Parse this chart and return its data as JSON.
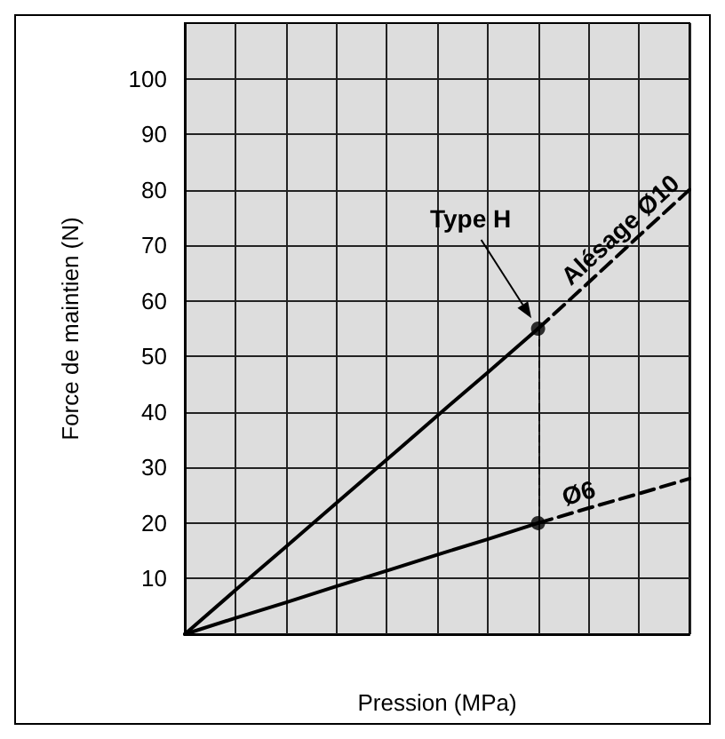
{
  "chart_data": {
    "type": "line",
    "xlabel": "Pression (MPa)",
    "ylabel": "Force de maintien (N)",
    "categories": [
      null,
      null,
      null,
      null,
      null,
      null,
      null,
      null,
      null,
      null,
      null
    ],
    "ylim": [
      0,
      110
    ],
    "yticks": [
      10,
      20,
      30,
      40,
      50,
      60,
      70,
      80,
      90,
      100
    ],
    "grid": true,
    "tick_labels": "y",
    "series": [
      {
        "color": "#000000",
        "values": [
          0,
          7.9,
          15.7,
          23.6,
          31.4,
          39.3,
          47.1,
          55,
          null,
          null,
          null
        ],
        "line_style": "solid"
      },
      {
        "color": "#000000",
        "values": [
          null,
          null,
          null,
          null,
          null,
          null,
          null,
          55,
          63.3,
          71.7,
          80
        ],
        "line_style": "dashed"
      },
      {
        "color": "#000000",
        "values": [
          0,
          2.9,
          5.7,
          8.6,
          11.4,
          14.3,
          17.1,
          20,
          null,
          null,
          null
        ],
        "line_style": "solid"
      },
      {
        "color": "#000000",
        "values": [
          null,
          null,
          null,
          null,
          null,
          null,
          null,
          20,
          22.7,
          25.3,
          28
        ],
        "line_style": "dashed"
      },
      {
        "type": "scatter",
        "color": "#000000",
        "values": [
          null,
          null,
          null,
          null,
          null,
          null,
          null,
          55,
          null,
          null,
          null
        ],
        "marker": "circle"
      },
      {
        "type": "scatter",
        "color": "#000000",
        "values": [
          null,
          null,
          null,
          null,
          null,
          null,
          null,
          20,
          null,
          null,
          null
        ],
        "marker": "circle"
      }
    ],
    "annotations": [
      "Type H",
      "Alésage Ø10",
      "Ø6"
    ]
  }
}
